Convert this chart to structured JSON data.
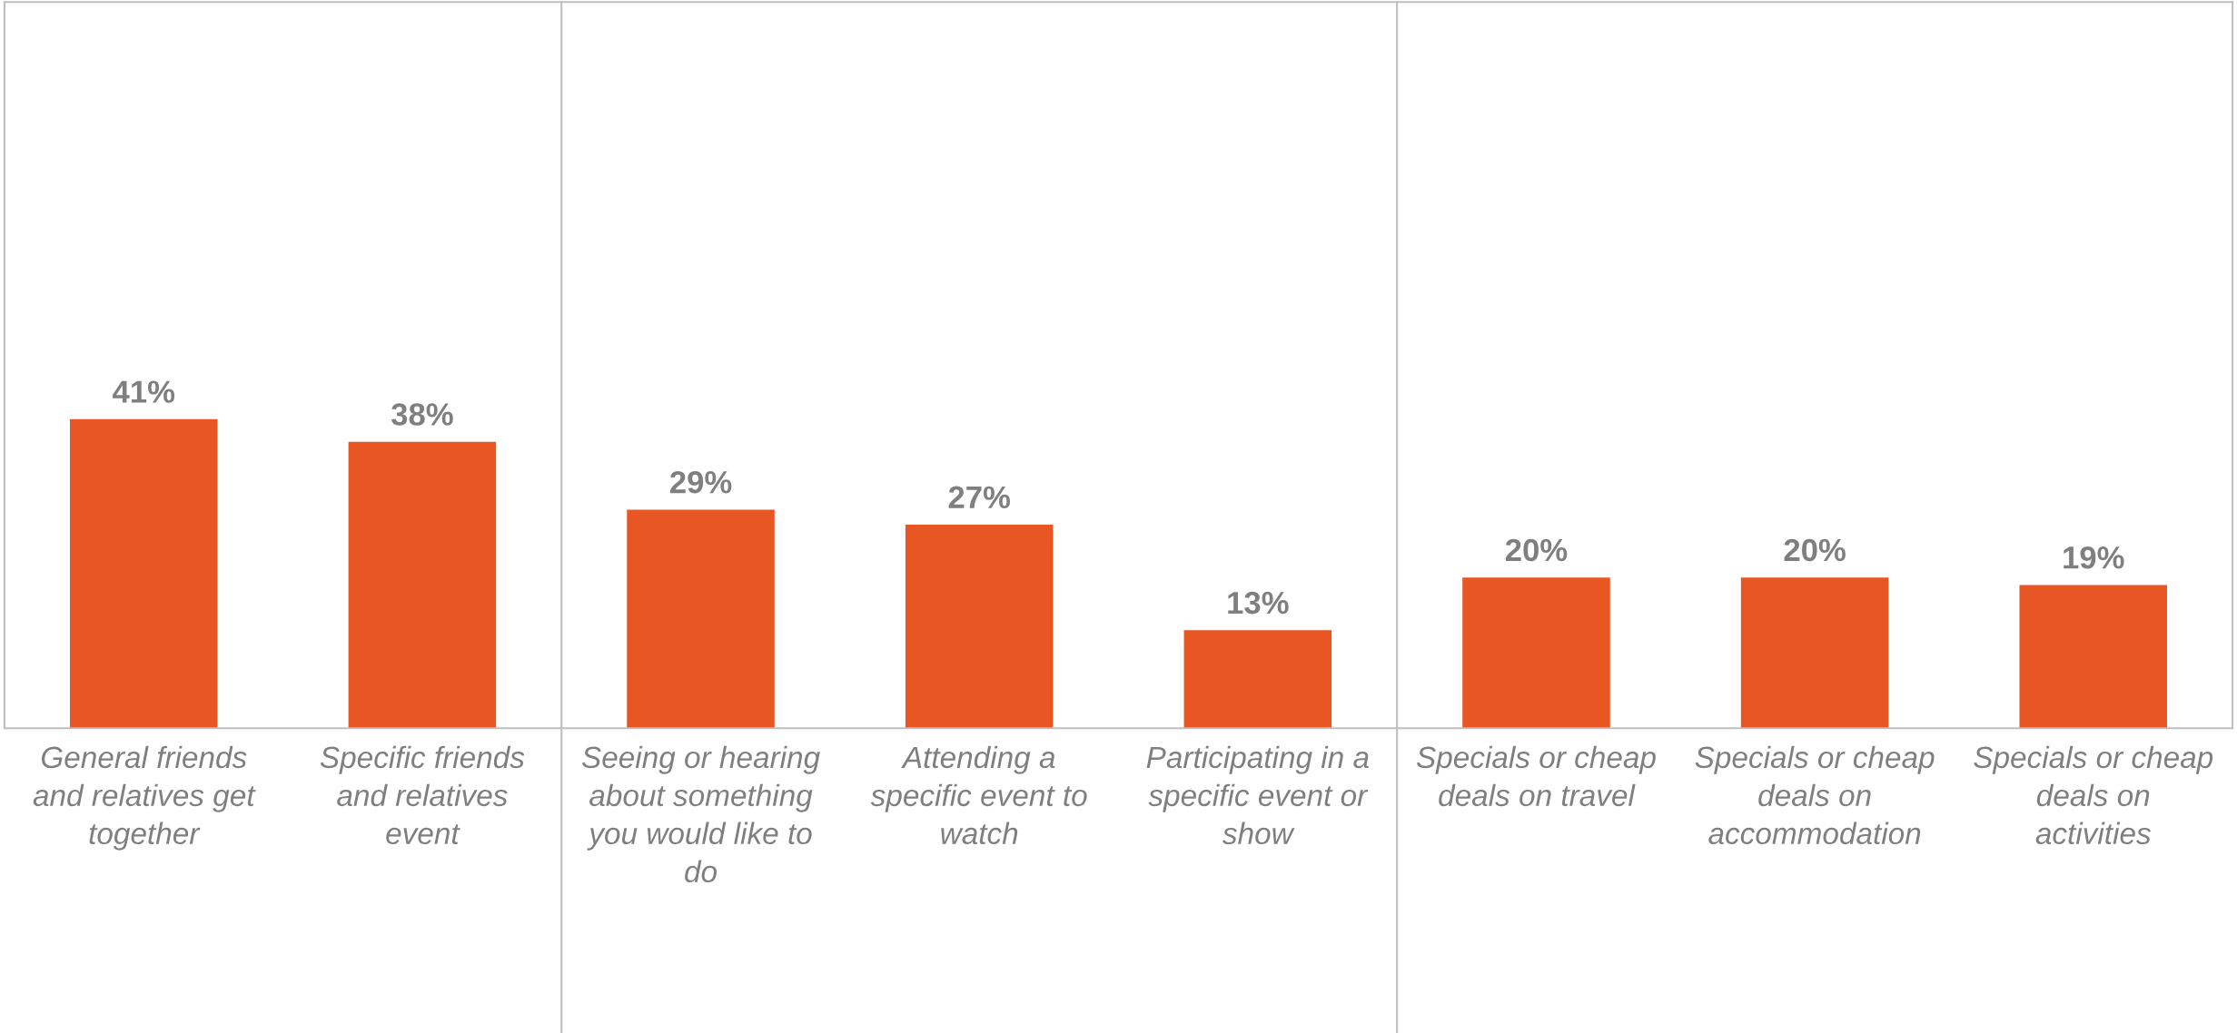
{
  "chart_data": {
    "type": "bar",
    "categories": [
      "General friends and relatives get together",
      "Specific friends and relatives event",
      "Seeing or hearing about something you would like to do",
      "Attending a specific event to watch",
      "Participating in a specific event or show",
      "Specials or cheap deals on travel",
      "Specials or cheap deals on accommodation",
      "Specials or cheap deals on activities"
    ],
    "values": [
      41,
      38,
      29,
      27,
      13,
      20,
      20,
      19
    ],
    "value_labels": [
      "41%",
      "38%",
      "29%",
      "27%",
      "13%",
      "20%",
      "20%",
      "19%"
    ],
    "color": "#e85624",
    "grid": false,
    "legend": false
  }
}
